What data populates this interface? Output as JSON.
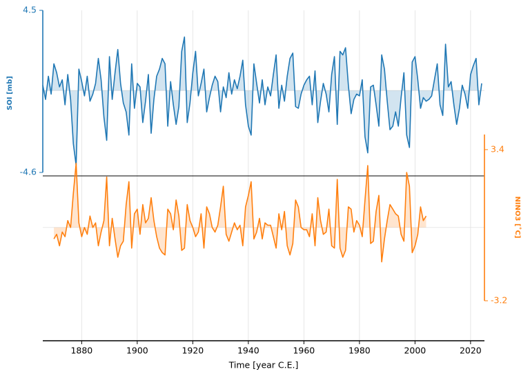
{
  "chart_data": [
    {
      "type": "line",
      "ylabel": "SOI [mb]",
      "color": "#1f77b4",
      "xlabel": "Time [year C.E.]",
      "xlim": [
        1866,
        2025
      ],
      "xticks": [
        1880,
        1900,
        1920,
        1940,
        1960,
        1980,
        2000,
        2020
      ],
      "grid": true,
      "ylim": [
        -4.6,
        4.5
      ],
      "yticks": [
        -4.6,
        4.5
      ],
      "x": [
        1866,
        1867,
        1868,
        1869,
        1870,
        1871,
        1872,
        1873,
        1874,
        1875,
        1876,
        1877,
        1878,
        1879,
        1880,
        1881,
        1882,
        1883,
        1884,
        1885,
        1886,
        1887,
        1888,
        1889,
        1890,
        1891,
        1892,
        1893,
        1894,
        1895,
        1896,
        1897,
        1898,
        1899,
        1900,
        1901,
        1902,
        1903,
        1904,
        1905,
        1906,
        1907,
        1908,
        1909,
        1910,
        1911,
        1912,
        1913,
        1914,
        1915,
        1916,
        1917,
        1918,
        1919,
        1920,
        1921,
        1922,
        1923,
        1924,
        1925,
        1926,
        1927,
        1928,
        1929,
        1930,
        1931,
        1932,
        1933,
        1934,
        1935,
        1936,
        1937,
        1938,
        1939,
        1940,
        1941,
        1942,
        1943,
        1944,
        1945,
        1946,
        1947,
        1948,
        1949,
        1950,
        1951,
        1952,
        1953,
        1954,
        1955,
        1956,
        1957,
        1958,
        1959,
        1960,
        1961,
        1962,
        1963,
        1964,
        1965,
        1966,
        1967,
        1968,
        1969,
        1970,
        1971,
        1972,
        1973,
        1974,
        1975,
        1976,
        1977,
        1978,
        1979,
        1980,
        1981,
        1982,
        1983,
        1984,
        1985,
        1986,
        1987,
        1988,
        1989,
        1990,
        1991,
        1992,
        1993,
        1994,
        1995,
        1996,
        1997,
        1998,
        1999,
        2000,
        2001,
        2002,
        2003,
        2004,
        2005,
        2006,
        2007,
        2008,
        2009,
        2010,
        2011,
        2012,
        2013,
        2014,
        2015,
        2016,
        2017,
        2018,
        2019,
        2020,
        2021,
        2022,
        2023,
        2024
      ],
      "values": [
        0.3,
        -0.5,
        0.8,
        -0.2,
        1.5,
        1.0,
        0.2,
        0.6,
        -0.8,
        0.9,
        -0.5,
        -3.0,
        -4.2,
        1.2,
        0.5,
        -0.3,
        0.8,
        -0.6,
        -0.2,
        0.4,
        1.8,
        0.6,
        -1.5,
        -2.8,
        1.9,
        -0.5,
        1.0,
        2.3,
        0.4,
        -0.7,
        -1.2,
        -2.5,
        1.5,
        -1.0,
        0.4,
        0.2,
        -1.8,
        -0.6,
        0.9,
        -2.4,
        -0.5,
        0.8,
        1.2,
        1.8,
        1.5,
        -2.0,
        0.5,
        -0.8,
        -1.9,
        -0.9,
        2.2,
        3.0,
        -1.8,
        -0.7,
        1.0,
        2.2,
        -0.3,
        0.4,
        1.2,
        -1.2,
        -0.4,
        0.3,
        0.8,
        0.5,
        -1.2,
        0.2,
        -0.4,
        1.0,
        -0.2,
        0.6,
        0.1,
        0.8,
        1.7,
        -0.8,
        -2.0,
        -2.5,
        1.5,
        0.4,
        -0.7,
        0.6,
        -0.8,
        0.2,
        -0.3,
        0.9,
        2.0,
        -1.0,
        0.3,
        -0.6,
        0.8,
        1.8,
        2.1,
        -0.9,
        -1.0,
        -0.2,
        0.3,
        0.6,
        0.8,
        -0.8,
        1.1,
        -1.8,
        -0.6,
        0.4,
        -0.2,
        -1.2,
        0.9,
        1.9,
        -1.9,
        2.2,
        2.0,
        2.4,
        0.3,
        -1.3,
        -0.5,
        -0.2,
        -0.3,
        0.6,
        -2.6,
        -3.5,
        0.2,
        0.3,
        -0.8,
        -2.0,
        2.0,
        1.2,
        -0.6,
        -2.2,
        -2.0,
        -1.2,
        -2.0,
        -0.4,
        1.0,
        -2.5,
        -3.2,
        1.6,
        1.9,
        0.6,
        -1.0,
        -0.4,
        -0.6,
        -0.5,
        -0.3,
        0.6,
        1.5,
        -0.8,
        -1.4,
        2.6,
        0.2,
        0.5,
        -0.8,
        -1.9,
        -1.0,
        0.3,
        -0.2,
        -1.0,
        0.9,
        1.4,
        1.8,
        -0.8,
        0.4
      ]
    },
    {
      "type": "line",
      "ylabel": "NINO3 [˚C]",
      "color": "#ff7f0e",
      "xlim": [
        1866,
        2025
      ],
      "ylim": [
        -3.2,
        4.06
      ],
      "yticks": [
        -3.2,
        3.4
      ],
      "x": [
        1870,
        1871,
        1872,
        1873,
        1874,
        1875,
        1876,
        1877,
        1878,
        1879,
        1880,
        1881,
        1882,
        1883,
        1884,
        1885,
        1886,
        1887,
        1888,
        1889,
        1890,
        1891,
        1892,
        1893,
        1894,
        1895,
        1896,
        1897,
        1898,
        1899,
        1900,
        1901,
        1902,
        1903,
        1904,
        1905,
        1906,
        1907,
        1908,
        1909,
        1910,
        1911,
        1912,
        1913,
        1914,
        1915,
        1916,
        1917,
        1918,
        1919,
        1920,
        1921,
        1922,
        1923,
        1924,
        1925,
        1926,
        1927,
        1928,
        1929,
        1930,
        1931,
        1932,
        1933,
        1934,
        1935,
        1936,
        1937,
        1938,
        1939,
        1940,
        1941,
        1942,
        1943,
        1944,
        1945,
        1946,
        1947,
        1948,
        1949,
        1950,
        1951,
        1952,
        1953,
        1954,
        1955,
        1956,
        1957,
        1958,
        1959,
        1960,
        1961,
        1962,
        1963,
        1964,
        1965,
        1966,
        1967,
        1968,
        1969,
        1970,
        1971,
        1972,
        1973,
        1974,
        1975,
        1976,
        1977,
        1978,
        1979,
        1980,
        1981,
        1982,
        1983,
        1984,
        1985,
        1986,
        1987,
        1988,
        1989,
        1990,
        1991,
        1992,
        1993,
        1994,
        1995,
        1996,
        1997,
        1998,
        1999,
        2000,
        2001,
        2002,
        2003,
        2004
      ],
      "values": [
        -0.5,
        -0.3,
        -0.8,
        -0.2,
        -0.4,
        0.3,
        0.0,
        1.5,
        2.8,
        0.2,
        -0.4,
        0.0,
        -0.3,
        0.5,
        0.0,
        0.2,
        -0.8,
        -0.2,
        0.3,
        2.2,
        -0.8,
        0.4,
        -0.5,
        -1.3,
        -0.8,
        -0.6,
        1.0,
        2.0,
        -0.9,
        0.6,
        0.8,
        -0.3,
        1.0,
        0.2,
        0.4,
        1.3,
        0.3,
        -0.4,
        -0.9,
        -1.1,
        -1.2,
        0.8,
        0.6,
        -0.1,
        1.2,
        0.5,
        -1.0,
        -0.9,
        1.0,
        0.3,
        0.0,
        -0.4,
        -0.2,
        0.6,
        -0.9,
        0.9,
        0.6,
        0.0,
        -0.2,
        0.1,
        0.9,
        1.8,
        -0.3,
        -0.6,
        -0.2,
        0.2,
        -0.1,
        0.1,
        -0.8,
        0.9,
        1.4,
        2.0,
        -0.5,
        -0.2,
        0.4,
        -0.5,
        0.2,
        0.1,
        0.1,
        -0.4,
        -0.9,
        0.6,
        -0.1,
        0.7,
        -0.8,
        -1.2,
        -0.7,
        1.2,
        0.9,
        0.0,
        -0.1,
        -0.1,
        -0.4,
        0.6,
        -0.8,
        1.3,
        0.3,
        -0.3,
        -0.2,
        0.8,
        -0.8,
        -0.9,
        2.1,
        -0.9,
        -1.3,
        -1.0,
        0.9,
        0.8,
        -0.2,
        0.3,
        0.1,
        -0.4,
        1.2,
        2.7,
        -0.7,
        -0.6,
        0.7,
        1.4,
        -1.5,
        -0.5,
        0.3,
        1.0,
        0.8,
        0.6,
        0.5,
        -0.3,
        -0.6,
        2.4,
        1.8,
        -1.1,
        -0.8,
        -0.3,
        0.9,
        0.3,
        0.5
      ]
    }
  ]
}
